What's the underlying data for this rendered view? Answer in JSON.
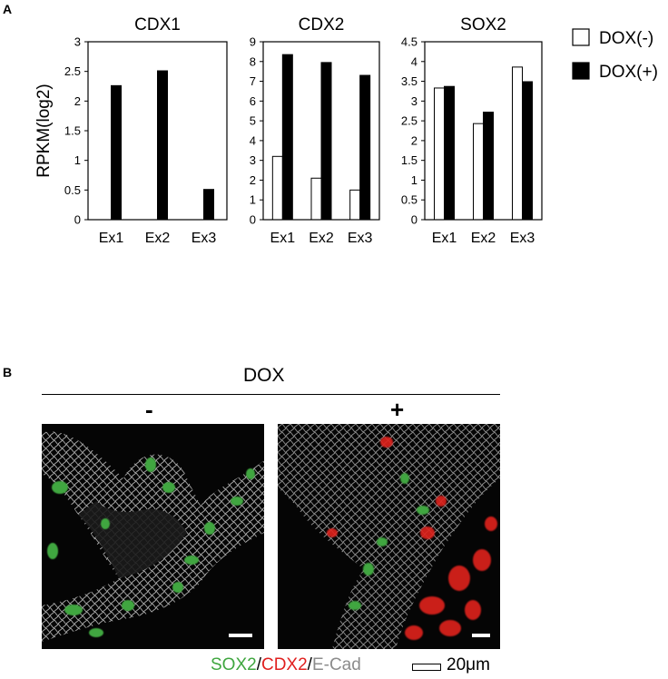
{
  "panel_a_label": "A",
  "panel_b_label": "B",
  "chart_data": [
    {
      "type": "bar",
      "title": "CDX1",
      "ylabel": "RPKM(log2)",
      "categories": [
        "Ex1",
        "Ex2",
        "Ex3"
      ],
      "ylim": [
        0,
        3
      ],
      "yticks": [
        "0",
        "0.5",
        "1",
        "1.5",
        "2",
        "2.5",
        "3"
      ],
      "series": [
        {
          "name": "DOX(-)",
          "values": [
            0,
            0,
            0
          ]
        },
        {
          "name": "DOX(+)",
          "values": [
            2.26,
            2.51,
            0.51
          ]
        }
      ]
    },
    {
      "type": "bar",
      "title": "CDX2",
      "ylabel": "",
      "categories": [
        "Ex1",
        "Ex2",
        "Ex3"
      ],
      "ylim": [
        0,
        9
      ],
      "yticks": [
        "0",
        "1",
        "2",
        "3",
        "4",
        "5",
        "6",
        "7",
        "8",
        "9"
      ],
      "series": [
        {
          "name": "DOX(-)",
          "values": [
            3.2,
            2.1,
            1.5
          ]
        },
        {
          "name": "DOX(+)",
          "values": [
            8.35,
            7.95,
            7.3
          ]
        }
      ]
    },
    {
      "type": "bar",
      "title": "SOX2",
      "ylabel": "",
      "categories": [
        "Ex1",
        "Ex2",
        "Ex3"
      ],
      "ylim": [
        0,
        4.5
      ],
      "yticks": [
        "0",
        "0.5",
        "1",
        "1.5",
        "2",
        "2.5",
        "3",
        "3.5",
        "4",
        "4.5"
      ],
      "series": [
        {
          "name": "DOX(-)",
          "values": [
            3.33,
            2.43,
            3.86
          ]
        },
        {
          "name": "DOX(+)",
          "values": [
            3.37,
            2.72,
            3.49
          ]
        }
      ]
    }
  ],
  "legend": [
    {
      "label": "DOX(-)",
      "color": "#ffffff"
    },
    {
      "label": "DOX(+)",
      "color": "#000000"
    }
  ],
  "colors": {
    "sox2": "#3fa63f",
    "cdx2": "#e0201f",
    "ecad": "#8c8c8c"
  },
  "panel_b": {
    "header": "DOX",
    "minus_label": "-",
    "plus_label": "+",
    "caption": {
      "sox2": "SOX2",
      "sep1": "/",
      "cdx2": "CDX2",
      "sep2": "/",
      "ecad": "E-Cad"
    },
    "scale_label": "20μm"
  }
}
